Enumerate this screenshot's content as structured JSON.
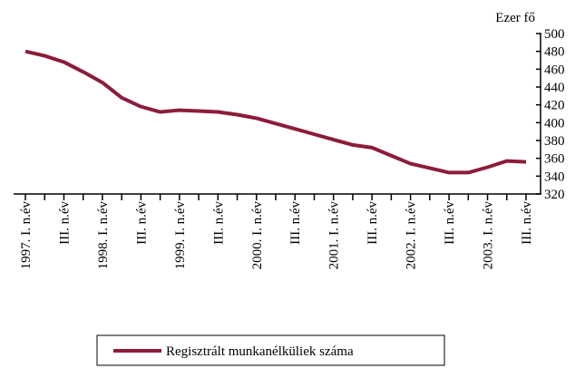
{
  "chart_data": {
    "type": "line",
    "y_axis_label": "Ezer fő",
    "categories": [
      "1997. I. n.év",
      null,
      "III. n.év",
      null,
      "1998. I. n.év",
      null,
      "III. n.év",
      null,
      "1999. I. n.év",
      null,
      "III. n.év",
      null,
      "2000. I. n.év",
      null,
      "III. n.év",
      null,
      "2001. I. n.év",
      null,
      "III. n.év",
      null,
      "2002. I. n.év",
      null,
      "III. n.év",
      null,
      "2003. I. n.év",
      null,
      "III. n.év"
    ],
    "series": [
      {
        "name": "Regisztrált munkanélküliek száma",
        "color": "#8c1c3a",
        "values": [
          480,
          475,
          468,
          457,
          445,
          428,
          418,
          412,
          414,
          413,
          412,
          409,
          405,
          399,
          393,
          387,
          381,
          375,
          372,
          363,
          354,
          349,
          344,
          344,
          350,
          357,
          356
        ]
      }
    ],
    "ylim": [
      320,
      500
    ],
    "yticks": [
      320,
      340,
      360,
      380,
      400,
      420,
      440,
      460,
      480,
      500
    ],
    "grid": false,
    "legend": "bottom"
  }
}
